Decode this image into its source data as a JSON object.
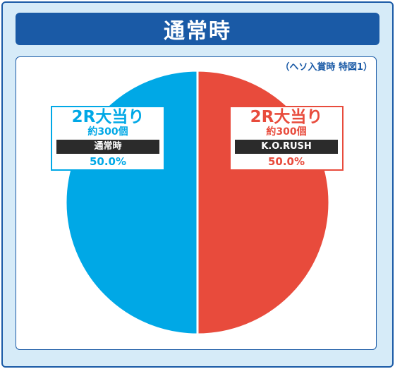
{
  "header": {
    "title": "通常時"
  },
  "note": "（ヘソ入賞時 特図1）",
  "colors": {
    "blue": "#00a8e6",
    "red": "#e84b3c",
    "frame": "#1a5aa6"
  },
  "chart_data": {
    "type": "pie",
    "slices": [
      {
        "title": "2R大当り",
        "detail": "約300個",
        "mode": "K.O.RUSH",
        "percent_label": "50.0%",
        "value": 50.0,
        "color": "#e84b3c"
      },
      {
        "title": "2R大当り",
        "detail": "約300個",
        "mode": "通常時",
        "percent_label": "50.0%",
        "value": 50.0,
        "color": "#00a8e6"
      }
    ]
  }
}
